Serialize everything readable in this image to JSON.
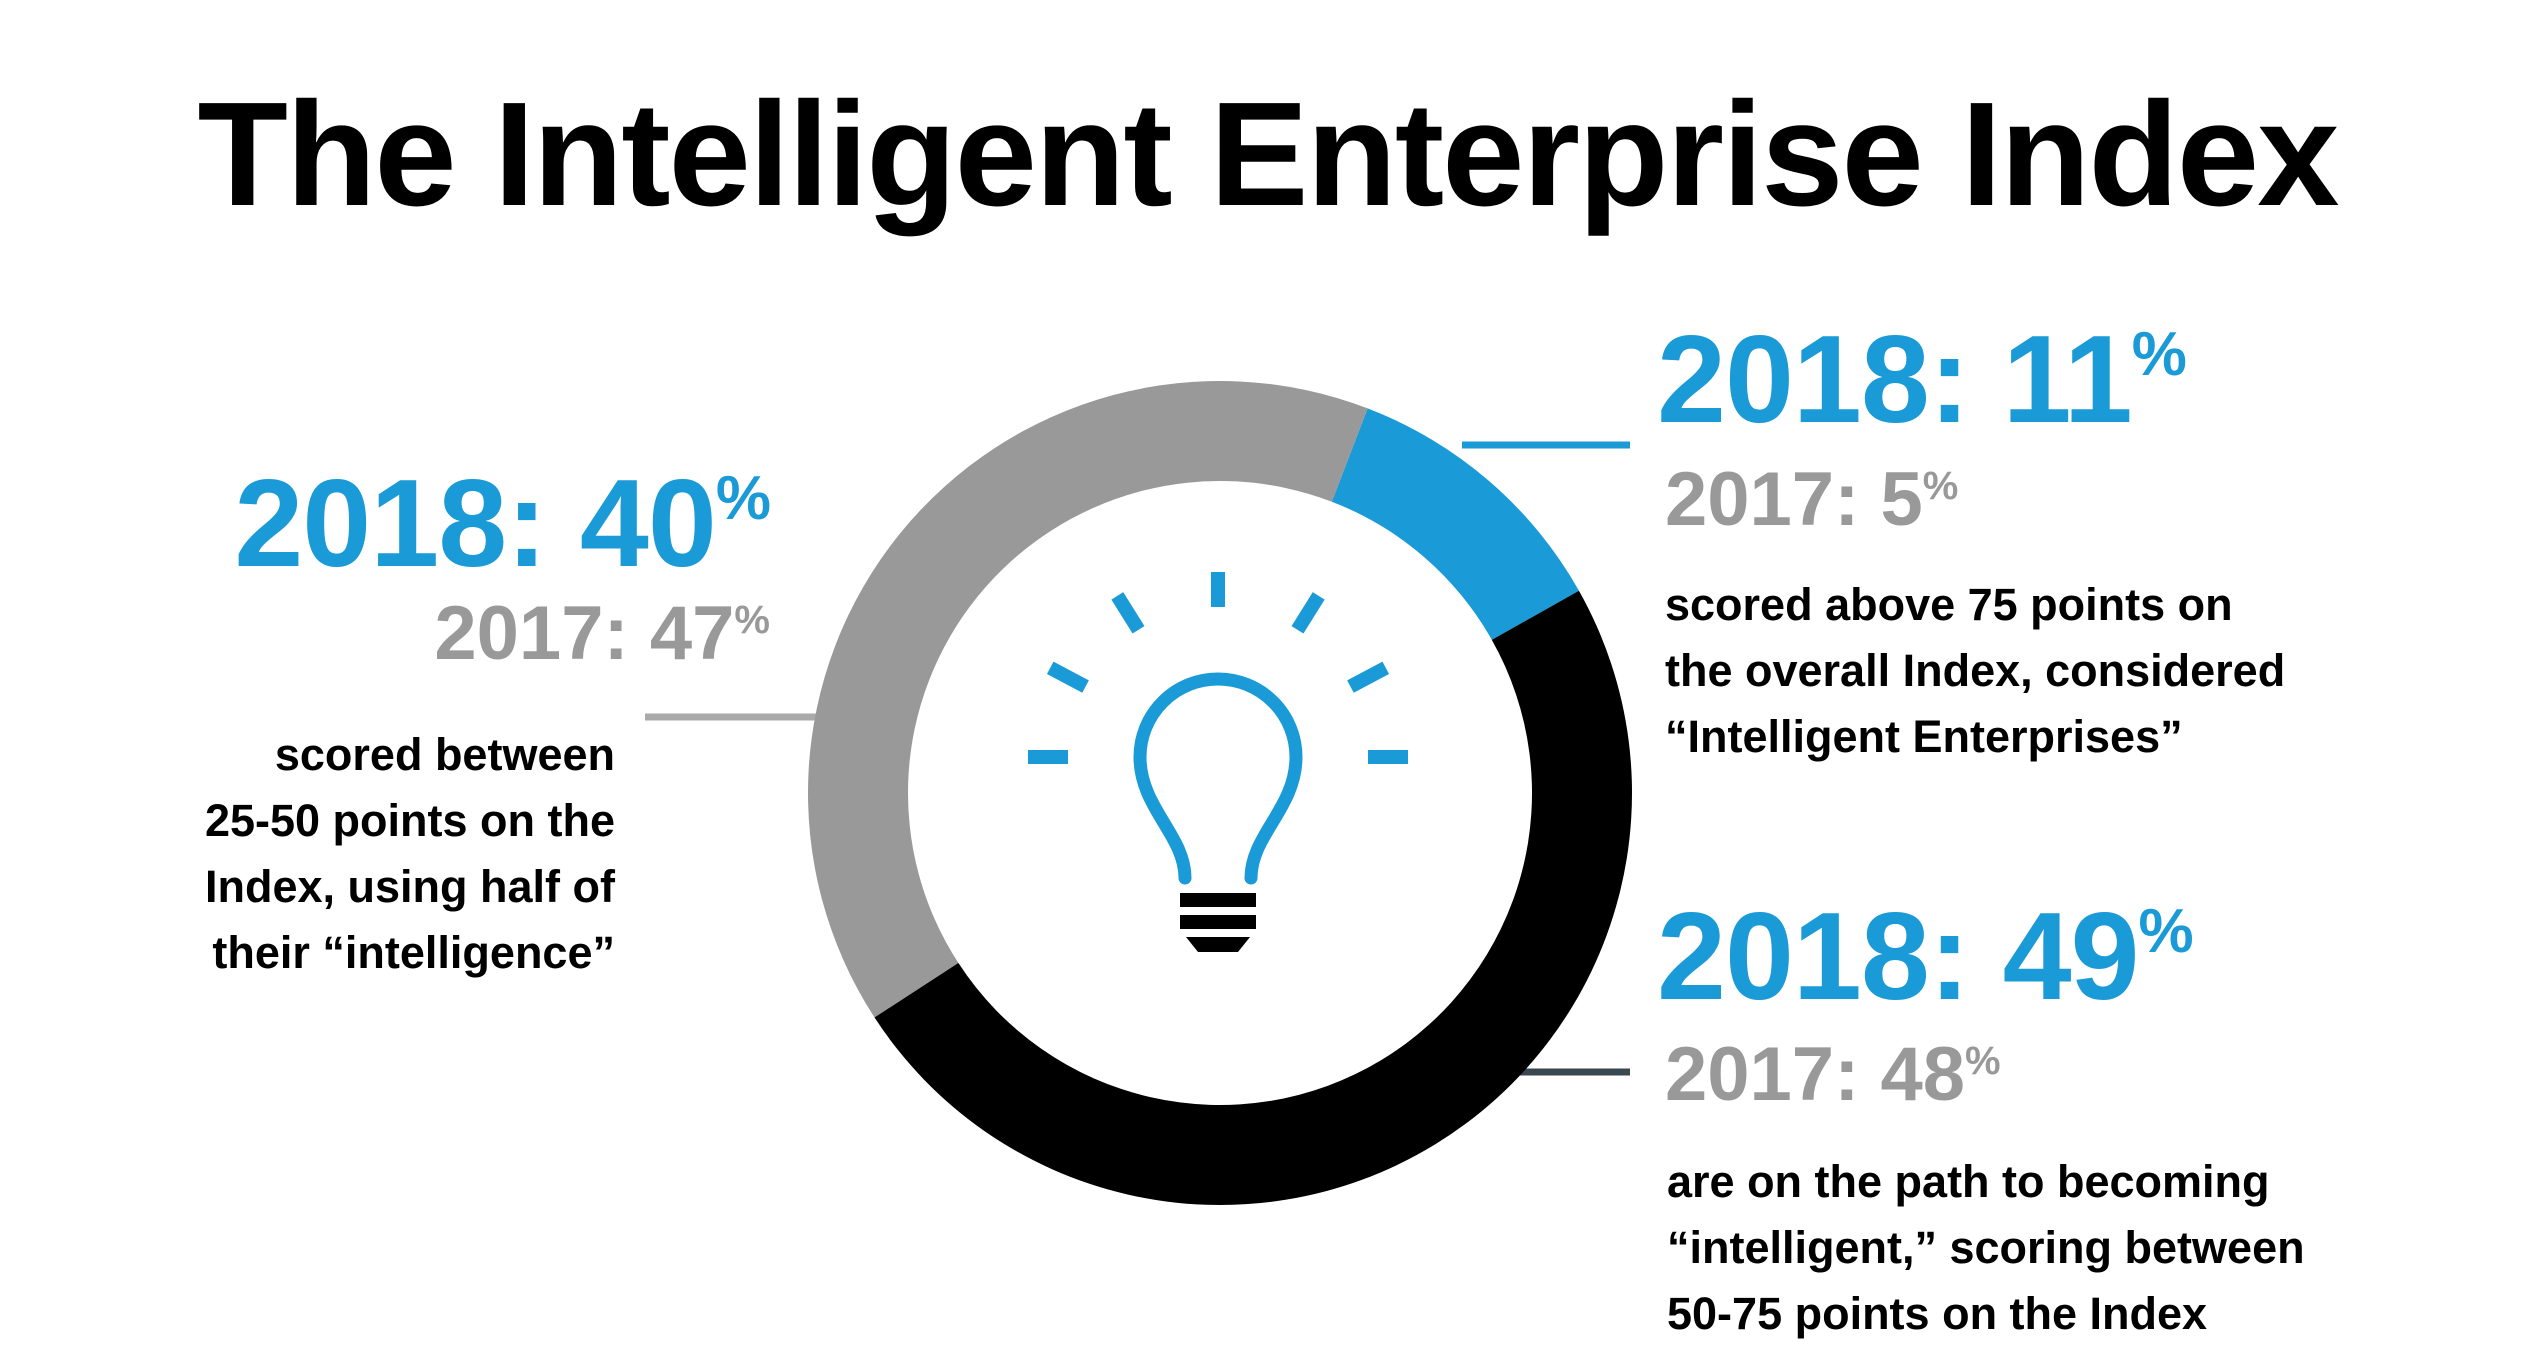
{
  "title": "The Intelligent Enterprise Index",
  "chart_data": {
    "type": "pie",
    "title": "The Intelligent Enterprise Index",
    "year_current": "2018",
    "year_previous": "2017",
    "segments": [
      {
        "key": "above75",
        "value": 11,
        "previous": 5,
        "color": "#1a9ad6",
        "label_2018": "2018: 11",
        "label_2017": "2017: 5",
        "description": [
          "scored above 75 points on",
          "the overall Index, considered",
          "“Intelligent Enterprises”"
        ]
      },
      {
        "key": "between50_75",
        "value": 49,
        "previous": 48,
        "color": "#000000",
        "label_2018": "2018: 49",
        "label_2017": "2017: 48",
        "description": [
          "are on the path to becoming",
          "“intelligent,” scoring between",
          "50-75 points on the Index"
        ]
      },
      {
        "key": "between25_50",
        "value": 40,
        "previous": 47,
        "color": "#999999",
        "label_2018": "2018: 40",
        "label_2017": "2017: 47",
        "description": [
          "scored between",
          "25-50 points on the",
          "Index, using half of",
          "their “intelligence”"
        ]
      }
    ],
    "percent_symbol": "%",
    "center_icon": "lightbulb-icon",
    "leader_line_color": "#aaaaaa",
    "bottom_leader_color": "#3a4650",
    "accent_color": "#1a9ad6"
  }
}
